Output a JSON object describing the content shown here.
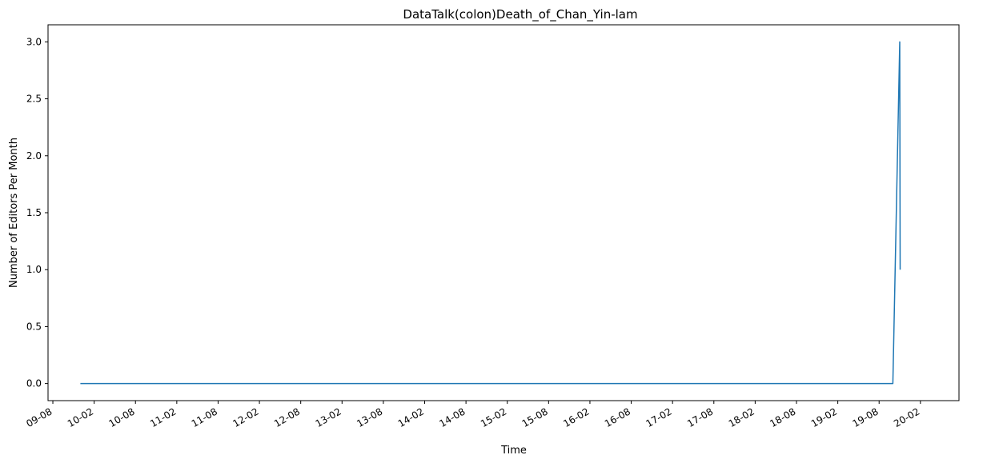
{
  "chart_data": {
    "type": "line",
    "title": "DataTalk(colon)Death_of_Chan_Yin-lam",
    "xlabel": "Time",
    "ylabel": "Number of Editors Per Month",
    "x_tick_labels": [
      "09-08",
      "10-02",
      "10-08",
      "11-02",
      "11-08",
      "12-02",
      "12-08",
      "13-02",
      "13-08",
      "14-02",
      "14-08",
      "15-02",
      "15-08",
      "16-02",
      "16-08",
      "17-02",
      "17-08",
      "18-02",
      "18-08",
      "19-02",
      "19-08",
      "20-02"
    ],
    "y_tick_labels": [
      "0.0",
      "0.5",
      "1.0",
      "1.5",
      "2.0",
      "2.5",
      "3.0"
    ],
    "ylim": [
      -0.15,
      3.15
    ],
    "grid": false,
    "series": [
      {
        "color": "#1f77b4",
        "points": [
          {
            "x": "2009-12",
            "y": 0
          },
          {
            "x": "2019-10",
            "y": 0
          },
          {
            "x": "2019-11",
            "y": 3
          },
          {
            "x": "2019-11",
            "y": 1
          }
        ]
      }
    ]
  }
}
